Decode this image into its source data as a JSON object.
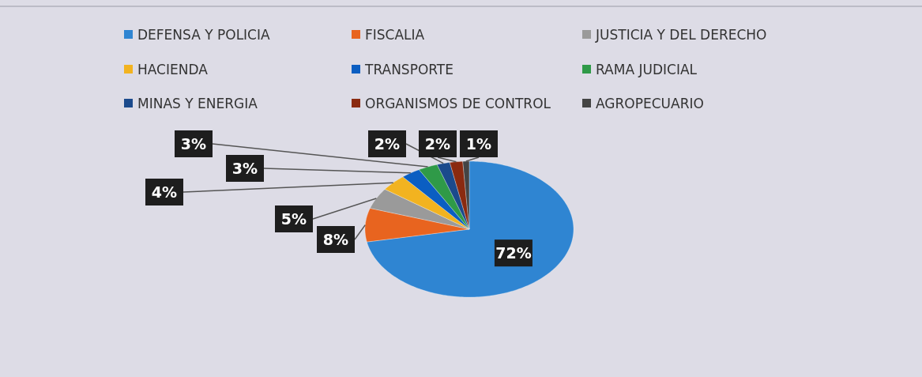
{
  "chart_data": {
    "type": "pie",
    "categories": [
      "DEFENSA Y POLICIA",
      "FISCALIA",
      "JUSTICIA Y DEL DERECHO",
      "HACIENDA",
      "TRANSPORTE",
      "RAMA JUDICIAL",
      "MINAS Y ENERGIA",
      "ORGANISMOS DE CONTROL",
      "AGROPECUARIO"
    ],
    "values": [
      72,
      8,
      5,
      4,
      3,
      3,
      2,
      2,
      1
    ],
    "colors": [
      "#2f85d2",
      "#e8641f",
      "#9a9a9a",
      "#f2b320",
      "#0b5ec2",
      "#2f9a48",
      "#1b4a8c",
      "#8a2a10",
      "#444444"
    ],
    "value_labels": [
      "72%",
      "8%",
      "5%",
      "4%",
      "3%",
      "3%",
      "2%",
      "2%",
      "1%"
    ],
    "legend": "top"
  }
}
